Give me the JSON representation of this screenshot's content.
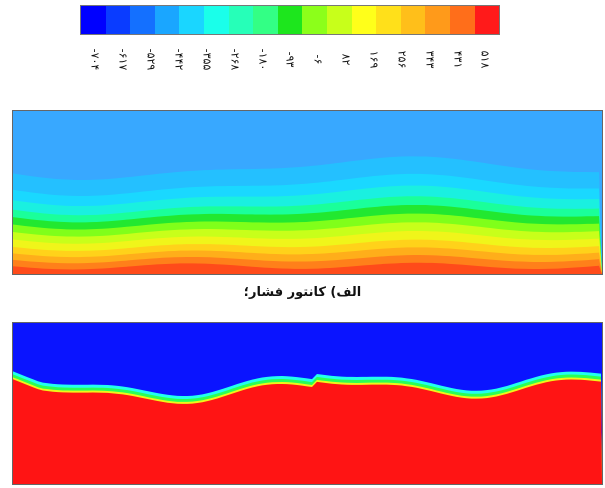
{
  "colorbar": {
    "colors": [
      "#0000ff",
      "#0a3cff",
      "#1470ff",
      "#1aa6ff",
      "#1ad6ff",
      "#1affea",
      "#26ffb8",
      "#33ff85",
      "#1de61d",
      "#8cff1a",
      "#c8ff1a",
      "#ffff1a",
      "#ffe01a",
      "#ffbf1a",
      "#ff9a1a",
      "#ff6e1a",
      "#ff1a1a"
    ],
    "ticks": [
      "-۷۰۴",
      "-۶۱۷",
      "-۵۲۹",
      "-۴۴۲",
      "-۳۵۵",
      "-۲۶۸",
      "-۱۸۰",
      "-۹۳",
      "-۶",
      "۸۲",
      "۱۶۹",
      "۲۵۶",
      "۳۴۳",
      "۴۳۱",
      "۵۱۸"
    ]
  },
  "pressure_panel": {
    "band_colors": [
      "#38a8ff",
      "#24c0ff",
      "#1ad8ff",
      "#1af0e0",
      "#1aff9a",
      "#22e830",
      "#80ff1a",
      "#c8ff1a",
      "#f0f51a",
      "#ffd21a",
      "#ffae1a",
      "#ff801a",
      "#ff4b1a"
    ]
  },
  "phase_panel": {
    "upper_color": "#0a14ff",
    "lower_color": "#ff1414"
  },
  "caption": "الف) کانتور فشار؛"
}
